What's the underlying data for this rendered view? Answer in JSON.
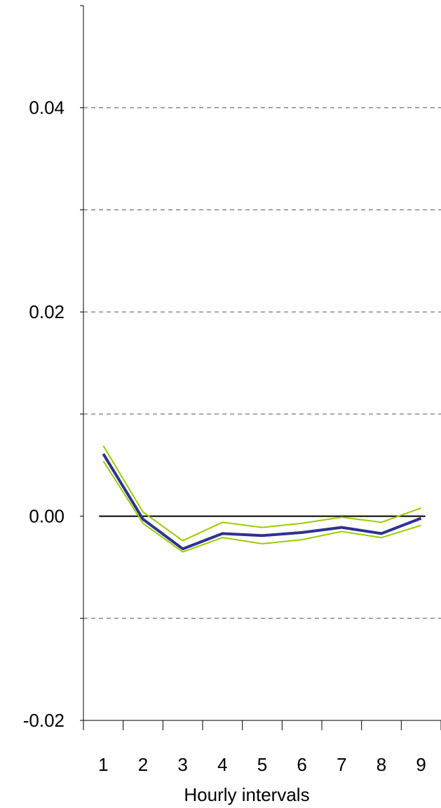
{
  "chart_data": {
    "type": "line",
    "title": "",
    "xlabel": "Hourly intervals",
    "ylabel": "",
    "x": [
      1,
      2,
      3,
      4,
      5,
      6,
      7,
      8,
      9
    ],
    "xlim": [
      0.5,
      9.5
    ],
    "ylim": [
      -0.02,
      0.05
    ],
    "y_ticks": [
      0.04,
      0.02,
      0.0,
      -0.02
    ],
    "y_tick_labels": [
      "0.04",
      "0.02",
      "0.00",
      "-0.02"
    ],
    "y_gridlines": [
      0.04,
      0.03,
      0.02,
      0.01,
      -0.01
    ],
    "grid": true,
    "zero_line": 0,
    "legend": "none",
    "series": [
      {
        "role": "estimate",
        "color": "#2E3192",
        "values": [
          0.0061,
          -0.0003,
          -0.0032,
          -0.0017,
          -0.0019,
          -0.0016,
          -0.0011,
          -0.0017,
          -0.0002
        ]
      },
      {
        "role": "upper-band",
        "color": "#99CC00",
        "values": [
          0.0069,
          0.0004,
          -0.0024,
          -0.0006,
          -0.0011,
          -0.0007,
          -0.0001,
          -0.0006,
          0.0008
        ]
      },
      {
        "role": "lower-band",
        "color": "#99CC00",
        "values": [
          0.0054,
          -0.0007,
          -0.0035,
          -0.0021,
          -0.0027,
          -0.0023,
          -0.0015,
          -0.0021,
          -0.0009
        ]
      }
    ]
  }
}
